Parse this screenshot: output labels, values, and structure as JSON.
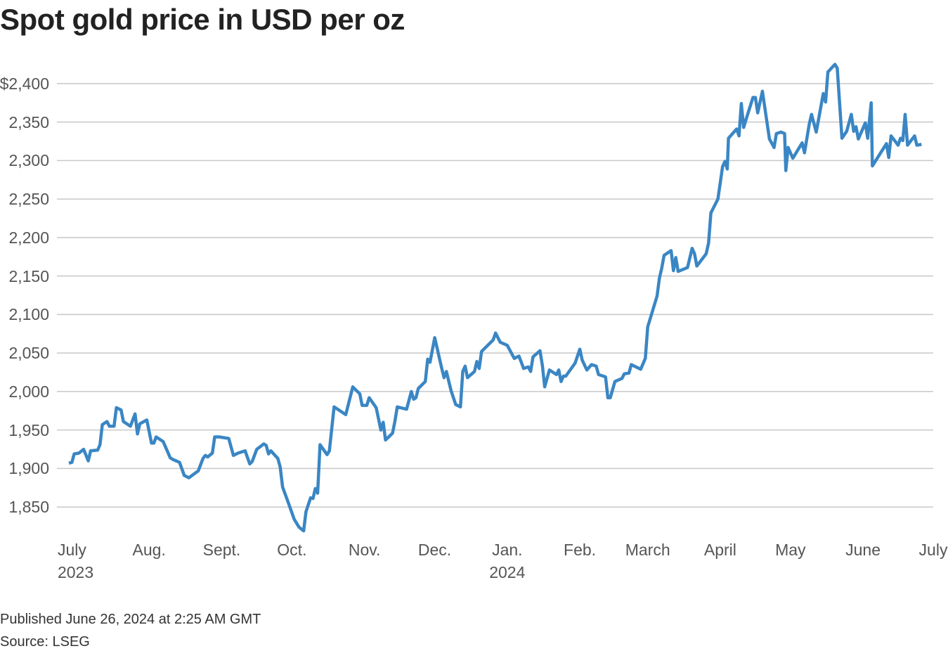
{
  "chart_data": {
    "type": "line",
    "title": "Spot gold price in USD per oz",
    "footnote": "Published June 26, 2024 at 2:25 AM GMT",
    "source": "Source: LSEG",
    "color": "#3a86c4",
    "grid": true,
    "xlim": [
      -8.4,
      366
    ],
    "xticks": [
      {
        "value": 0,
        "label": "July\n2023"
      },
      {
        "value": 31,
        "label": "Aug."
      },
      {
        "value": 62,
        "label": "Sept."
      },
      {
        "value": 92,
        "label": "Oct."
      },
      {
        "value": 123,
        "label": "Nov."
      },
      {
        "value": 153,
        "label": "Dec."
      },
      {
        "value": 184,
        "label": "Jan.\n2024"
      },
      {
        "value": 215,
        "label": "Feb."
      },
      {
        "value": 244,
        "label": "March"
      },
      {
        "value": 275,
        "label": "April"
      },
      {
        "value": 305,
        "label": "May"
      },
      {
        "value": 336,
        "label": "June"
      },
      {
        "value": 366,
        "label": "July"
      }
    ],
    "ylim": [
      1810,
      2430
    ],
    "yticks": [
      {
        "value": 1850,
        "label": "1,850"
      },
      {
        "value": 1900,
        "label": "1,900"
      },
      {
        "value": 1950,
        "label": "1,950"
      },
      {
        "value": 2000,
        "label": "2,000"
      },
      {
        "value": 2050,
        "label": "2,050"
      },
      {
        "value": 2100,
        "label": "2,100"
      },
      {
        "value": 2150,
        "label": "2,150"
      },
      {
        "value": 2200,
        "label": "2,200"
      },
      {
        "value": 2250,
        "label": "2,250"
      },
      {
        "value": 2300,
        "label": "2,300"
      },
      {
        "value": 2350,
        "label": "2,350"
      },
      {
        "value": 2400,
        "label": "$2,400"
      }
    ],
    "x": [
      -3.3,
      -2,
      -1,
      1,
      3,
      5,
      6,
      9,
      10,
      11,
      13,
      14,
      16,
      17,
      19,
      20,
      23,
      25,
      26,
      27,
      30,
      32,
      33,
      34,
      37,
      40,
      41,
      44,
      46,
      48,
      52,
      54,
      55,
      56,
      58,
      59,
      61,
      65,
      67,
      69,
      72,
      74,
      75,
      77,
      80,
      81,
      82,
      83,
      86,
      87,
      88,
      91,
      93,
      95,
      97,
      98,
      100,
      101,
      102,
      103,
      104,
      107,
      108,
      110,
      115,
      118,
      121,
      122,
      124,
      125,
      128,
      130,
      131,
      132,
      135,
      136,
      137,
      141,
      143,
      144,
      145,
      146,
      149,
      150,
      151,
      153,
      156,
      157,
      158,
      160,
      162,
      164,
      165,
      166,
      167,
      170,
      171,
      172,
      173,
      178,
      179,
      181,
      184,
      187,
      189,
      191,
      193,
      194,
      195,
      198,
      199,
      200,
      202,
      205,
      206,
      207,
      208,
      209,
      213,
      215,
      216,
      218,
      220,
      222,
      223,
      226,
      227,
      228,
      230,
      233,
      234,
      236,
      237,
      241,
      243,
      244,
      248,
      249,
      250,
      251,
      254,
      255,
      256,
      257,
      261,
      263,
      264,
      265,
      267,
      269,
      270,
      271,
      274,
      276,
      277,
      278,
      278.5,
      282,
      283,
      284,
      285,
      286,
      289,
      290,
      291,
      293,
      296,
      298,
      299,
      301,
      302.5,
      303,
      304,
      306,
      310,
      311,
      313,
      314,
      316,
      319,
      320,
      321,
      324,
      325,
      327,
      329,
      331,
      332,
      333,
      334,
      337,
      338,
      339.5,
      340,
      346,
      347,
      348,
      351,
      352,
      353,
      354,
      355,
      358,
      359,
      361
    ],
    "values": [
      1907,
      1908,
      1919,
      1920,
      1925,
      1910,
      1923,
      1924,
      1931,
      1957,
      1961,
      1955,
      1955,
      1979,
      1976,
      1961,
      1955,
      1971,
      1945,
      1958,
      1963,
      1933,
      1933,
      1941,
      1935,
      1914,
      1912,
      1908,
      1891,
      1888,
      1897,
      1913,
      1917,
      1915,
      1920,
      1941,
      1941,
      1939,
      1917,
      1920,
      1923,
      1906,
      1909,
      1925,
      1932,
      1930,
      1919,
      1923,
      1913,
      1902,
      1876,
      1851,
      1834,
      1824,
      1819,
      1844,
      1862,
      1861,
      1874,
      1868,
      1931,
      1918,
      1923,
      1980,
      1970,
      2006,
      1997,
      1982,
      1982,
      1992,
      1979,
      1950,
      1960,
      1937,
      1946,
      1961,
      1980,
      1977,
      2000,
      1990,
      1992,
      2004,
      2013,
      2042,
      2038,
      2070,
      2030,
      2018,
      2026,
      2001,
      1983,
      1980,
      2026,
      2033,
      2018,
      2026,
      2039,
      2030,
      2052,
      2067,
      2076,
      2064,
      2060,
      2043,
      2046,
      2030,
      2032,
      2026,
      2045,
      2053,
      2034,
      2006,
      2028,
      2022,
      2028,
      2013,
      2020,
      2020,
      2037,
      2055,
      2041,
      2028,
      2035,
      2033,
      2022,
      2019,
      1992,
      1992,
      2013,
      2017,
      2023,
      2024,
      2035,
      2029,
      2043,
      2084,
      2124,
      2147,
      2160,
      2177,
      2183,
      2157,
      2174,
      2156,
      2161,
      2186,
      2179,
      2163,
      2171,
      2179,
      2193,
      2232,
      2250,
      2292,
      2299,
      2289,
      2329,
      2341,
      2332,
      2374,
      2343,
      2353,
      2382,
      2382,
      2362,
      2390,
      2328,
      2317,
      2335,
      2337,
      2335,
      2287,
      2317,
      2303,
      2323,
      2310,
      2347,
      2360,
      2337,
      2387,
      2376,
      2415,
      2425,
      2420,
      2329,
      2338,
      2360,
      2338,
      2344,
      2328,
      2349,
      2329,
      2375,
      2293,
      2322,
      2304,
      2332,
      2320,
      2329,
      2326,
      2360,
      2320,
      2332,
      2320,
      2321
    ]
  }
}
